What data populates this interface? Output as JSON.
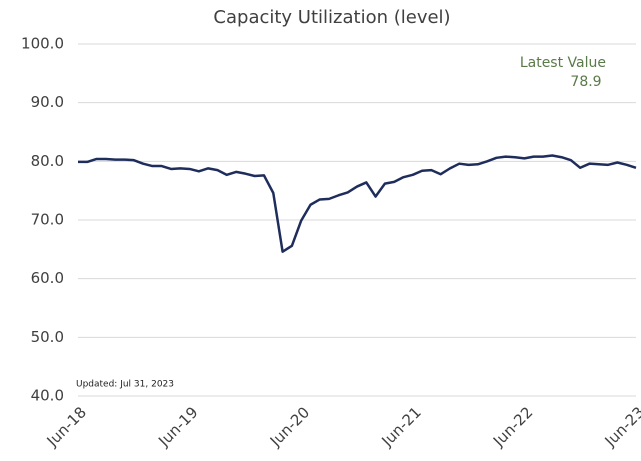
{
  "chart_data": {
    "type": "line",
    "title": "Capacity Utilization (level)",
    "annotation": "Latest Value",
    "note": "Updated: Jul 31, 2023",
    "categories": [
      "Jun-18",
      null,
      null,
      null,
      null,
      null,
      null,
      null,
      null,
      null,
      null,
      null,
      "Jun-19",
      null,
      null,
      null,
      null,
      null,
      null,
      null,
      null,
      null,
      null,
      null,
      "Jun-20",
      null,
      null,
      null,
      null,
      null,
      null,
      null,
      null,
      null,
      null,
      null,
      "Jun-21",
      null,
      null,
      null,
      null,
      null,
      null,
      null,
      null,
      null,
      null,
      null,
      "Jun-22",
      null,
      null,
      null,
      null,
      null,
      null,
      null,
      null,
      null,
      null,
      null,
      "Jun-23"
    ],
    "values": [
      79.9,
      79.9,
      80.4,
      80.4,
      80.3,
      80.3,
      80.2,
      79.6,
      79.2,
      79.2,
      78.7,
      78.8,
      78.7,
      78.3,
      78.8,
      78.5,
      77.7,
      78.2,
      77.9,
      77.5,
      77.6,
      74.6,
      64.6,
      65.6,
      69.9,
      72.6,
      73.5,
      73.6,
      74.2,
      74.7,
      75.7,
      76.4,
      74.0,
      76.2,
      76.5,
      77.3,
      77.7,
      78.4,
      78.5,
      77.8,
      78.8,
      79.6,
      79.4,
      79.5,
      80.0,
      80.6,
      80.8,
      80.7,
      80.5,
      80.8,
      80.8,
      81.0,
      80.7,
      80.2,
      78.9,
      79.6,
      79.5,
      79.4,
      79.8,
      79.4,
      78.9
    ],
    "color": "#1f2d5c",
    "ylim": [
      40,
      100
    ],
    "yticks": [
      {
        "value": 40,
        "label": "40.0"
      },
      {
        "value": 50,
        "label": "50.0"
      },
      {
        "value": 60,
        "label": "60.0"
      },
      {
        "value": 70,
        "label": "70.0"
      },
      {
        "value": 80,
        "label": "80.0"
      },
      {
        "value": 90,
        "label": "90.0"
      },
      {
        "value": 100,
        "label": "100.0"
      }
    ],
    "grid": true
  }
}
